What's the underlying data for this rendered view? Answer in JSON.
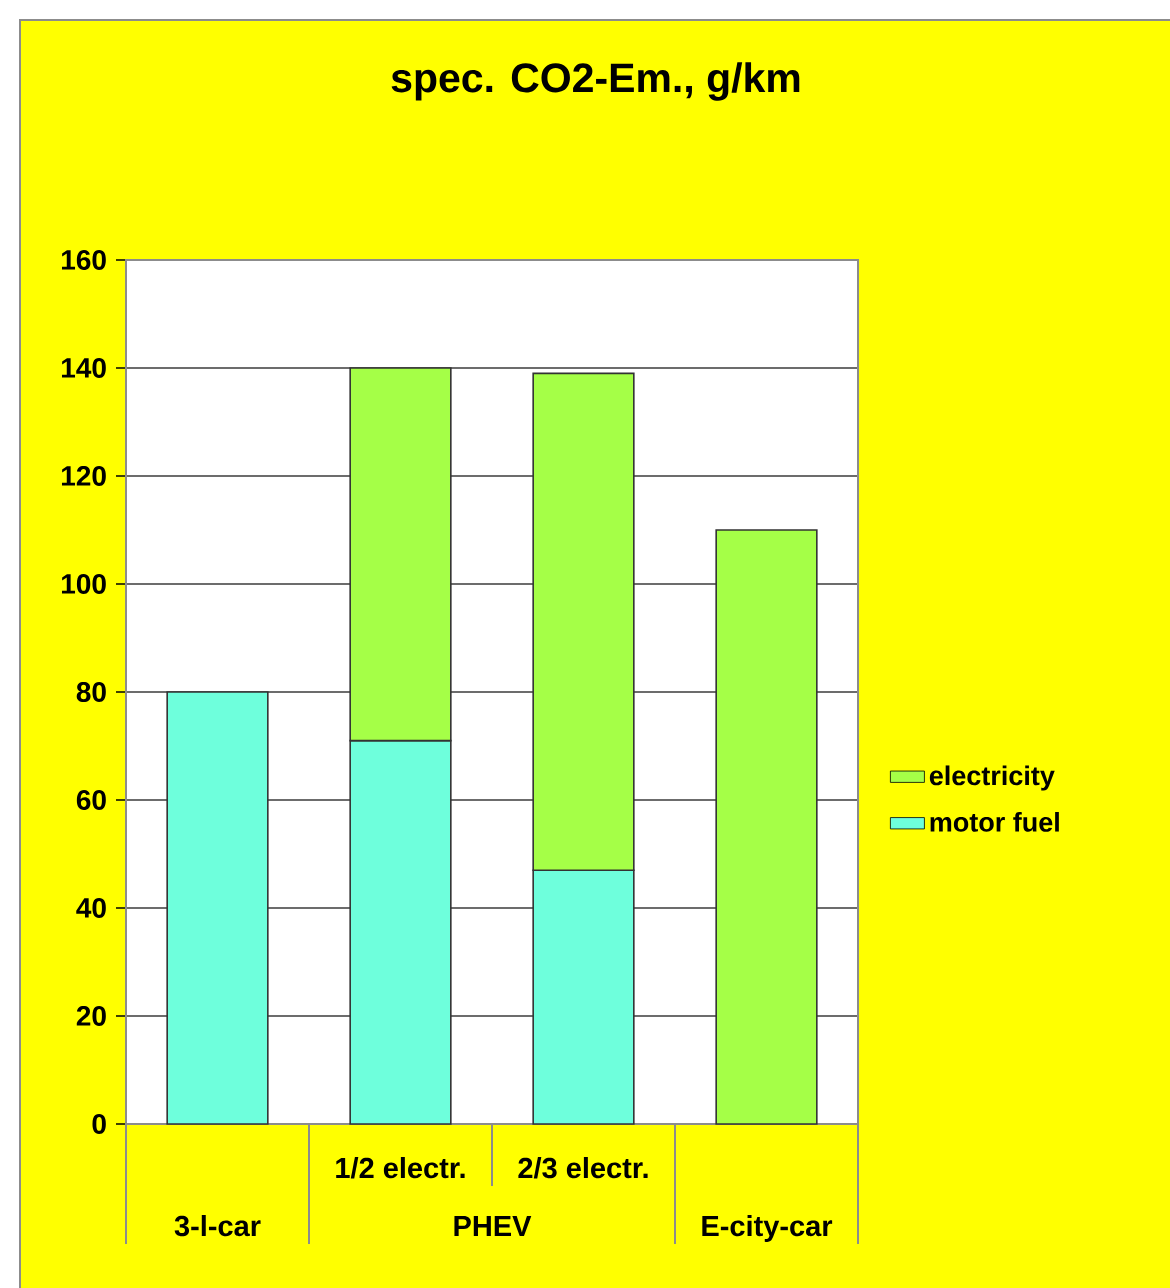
{
  "chart_data": {
    "type": "bar",
    "title": "spec. CO2-Em., g/km",
    "categories": [
      "3-l-car",
      "1/2 electr.",
      "2/3 electr.",
      "E-city-car"
    ],
    "stacked": true,
    "series": [
      {
        "name": "motor fuel",
        "color": "#6effdc",
        "values": [
          80,
          71,
          47,
          null
        ]
      },
      {
        "name": "electricity",
        "color": "#a5ff47",
        "values": [
          null,
          69,
          92,
          110
        ]
      }
    ],
    "ylim": [
      0,
      160
    ],
    "yticks": [
      0,
      20,
      40,
      60,
      80,
      100,
      120,
      140,
      160
    ],
    "grid": "y",
    "legend": "right",
    "annotations": [
      "PHEV"
    ]
  }
}
